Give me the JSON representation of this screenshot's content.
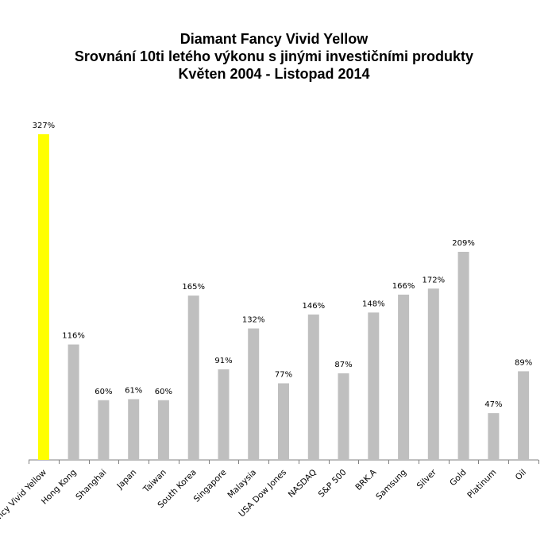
{
  "chart_data": {
    "type": "bar",
    "title_lines": [
      "Diamant Fancy Vivid Yellow",
      "Srovnání 10ti letého výkonu s jinými investičními produkty",
      "Květen 2004 - Listopad 2014"
    ],
    "categories": [
      "Fancy Vivid Yellow",
      "Hong Kong",
      "Shanghai",
      "Japan",
      "Taiwan",
      "South Korea",
      "Singapore",
      "Malaysia",
      "USA Dow Jones",
      "NASDAQ",
      "S&P 500",
      "BRK.A",
      "Samsung",
      "Silver",
      "Gold",
      "Platinum",
      "Oil"
    ],
    "values": [
      327,
      116,
      60,
      61,
      60,
      165,
      91,
      132,
      77,
      146,
      87,
      148,
      166,
      172,
      209,
      47,
      89
    ],
    "data_labels": [
      "327%",
      "116%",
      "60%",
      "61%",
      "60%",
      "165%",
      "91%",
      "132%",
      "77%",
      "146%",
      "87%",
      "148%",
      "166%",
      "172%",
      "209%",
      "47%",
      "89%"
    ],
    "colors": {
      "highlight": "#ffff00",
      "default": "#bfbfbf",
      "axis": "#808080"
    },
    "highlight_index": 0,
    "xlabel": "",
    "ylabel": "",
    "ylim": [
      0,
      350
    ],
    "grid": false,
    "legend": "none",
    "y_axis_visible": false
  }
}
